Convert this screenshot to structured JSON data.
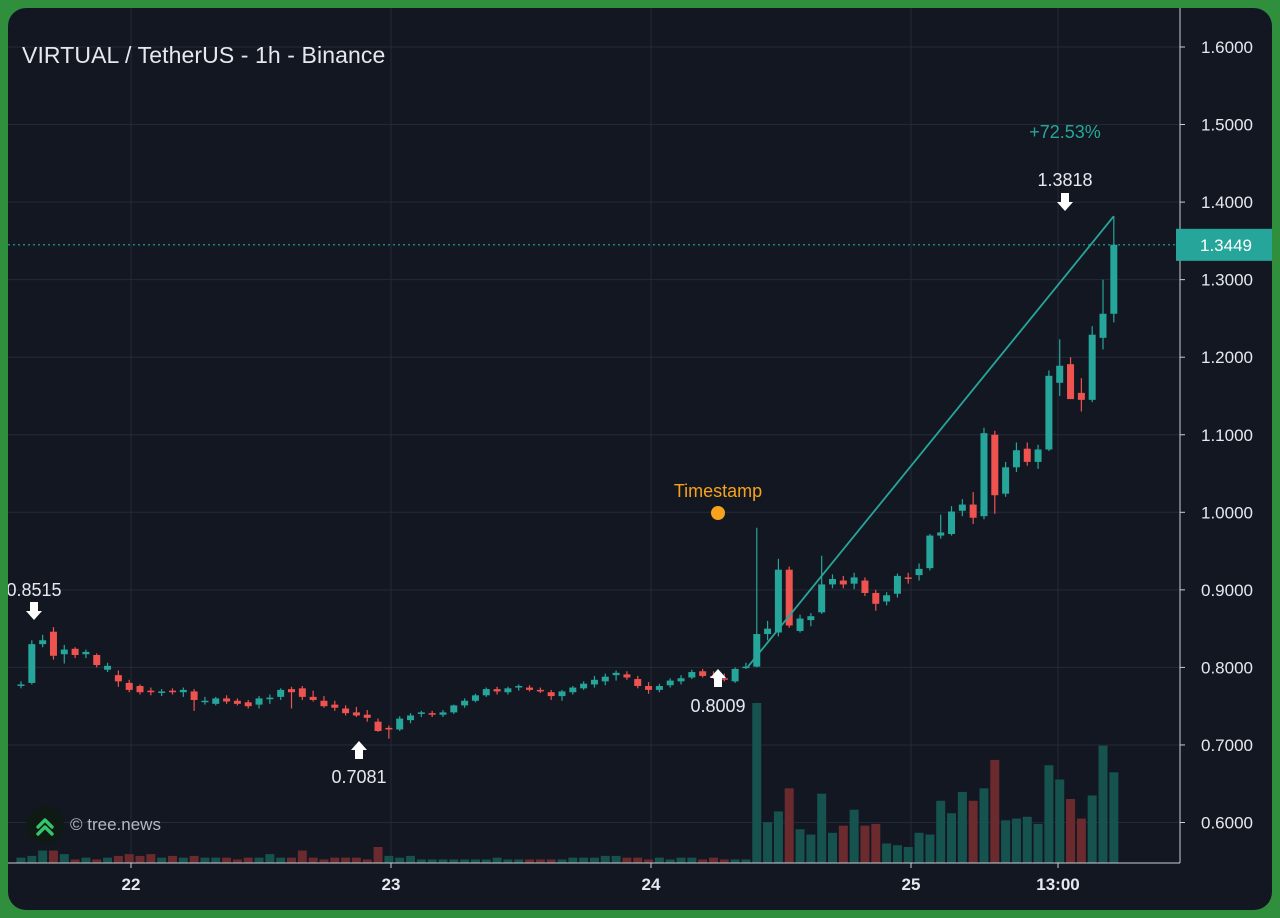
{
  "header": {
    "title": "VIRTUAL / TetherUS - 1h - Binance"
  },
  "watermark": {
    "text": "© tree.news",
    "icon": "tree-news-logo-icon"
  },
  "colors": {
    "up": "#26a69a",
    "down": "#ef5350",
    "annotation": "#f7a21b",
    "grid": "#242a35"
  },
  "chart_data": {
    "type": "candlestick",
    "title": "VIRTUAL / TetherUS - 1h - Binance",
    "x_ticks": [
      "22",
      "23",
      "24",
      "25",
      "13:00"
    ],
    "y_ticks": [
      "1.6000",
      "1.5000",
      "1.4000",
      "1.3000",
      "1.2000",
      "1.1000",
      "1.0000",
      "0.9000",
      "0.8000",
      "0.7000",
      "0.6000"
    ],
    "ylim": [
      0.545,
      1.655
    ],
    "grid": true,
    "last_price": "1.3449",
    "annotations": {
      "event_label": "Timestamp",
      "low_start_label": "0.8515",
      "swing_low_label": "0.7081",
      "event_low_label": "0.8009",
      "high_label": "1.3818",
      "change_label": "+72.53%"
    },
    "candles": [
      [
        0.778,
        0.782,
        0.773,
        0.778
      ],
      [
        0.78,
        0.835,
        0.778,
        0.83
      ],
      [
        0.83,
        0.842,
        0.826,
        0.835
      ],
      [
        0.846,
        0.852,
        0.81,
        0.815
      ],
      [
        0.817,
        0.829,
        0.805,
        0.823
      ],
      [
        0.824,
        0.826,
        0.812,
        0.816
      ],
      [
        0.817,
        0.823,
        0.812,
        0.82
      ],
      [
        0.816,
        0.818,
        0.8,
        0.803
      ],
      [
        0.797,
        0.806,
        0.794,
        0.802
      ],
      [
        0.79,
        0.796,
        0.775,
        0.782
      ],
      [
        0.78,
        0.784,
        0.768,
        0.771
      ],
      [
        0.776,
        0.778,
        0.765,
        0.768
      ],
      [
        0.77,
        0.774,
        0.764,
        0.768
      ],
      [
        0.768,
        0.772,
        0.763,
        0.769
      ],
      [
        0.77,
        0.773,
        0.765,
        0.768
      ],
      [
        0.768,
        0.774,
        0.762,
        0.771
      ],
      [
        0.769,
        0.772,
        0.744,
        0.758
      ],
      [
        0.756,
        0.762,
        0.752,
        0.757
      ],
      [
        0.753,
        0.762,
        0.751,
        0.76
      ],
      [
        0.76,
        0.764,
        0.753,
        0.756
      ],
      [
        0.757,
        0.76,
        0.751,
        0.753
      ],
      [
        0.755,
        0.758,
        0.747,
        0.75
      ],
      [
        0.752,
        0.763,
        0.747,
        0.76
      ],
      [
        0.759,
        0.765,
        0.753,
        0.761
      ],
      [
        0.762,
        0.773,
        0.758,
        0.771
      ],
      [
        0.772,
        0.775,
        0.747,
        0.768
      ],
      [
        0.773,
        0.776,
        0.758,
        0.762
      ],
      [
        0.762,
        0.77,
        0.756,
        0.758
      ],
      [
        0.757,
        0.763,
        0.748,
        0.75
      ],
      [
        0.752,
        0.757,
        0.744,
        0.748
      ],
      [
        0.747,
        0.751,
        0.738,
        0.741
      ],
      [
        0.742,
        0.749,
        0.736,
        0.738
      ],
      [
        0.739,
        0.745,
        0.73,
        0.735
      ],
      [
        0.73,
        0.734,
        0.717,
        0.718
      ],
      [
        0.722,
        0.725,
        0.708,
        0.72
      ],
      [
        0.72,
        0.737,
        0.718,
        0.734
      ],
      [
        0.732,
        0.741,
        0.728,
        0.738
      ],
      [
        0.74,
        0.744,
        0.736,
        0.742
      ],
      [
        0.741,
        0.744,
        0.736,
        0.739
      ],
      [
        0.739,
        0.745,
        0.736,
        0.742
      ],
      [
        0.742,
        0.752,
        0.74,
        0.751
      ],
      [
        0.751,
        0.76,
        0.748,
        0.757
      ],
      [
        0.757,
        0.766,
        0.755,
        0.764
      ],
      [
        0.764,
        0.774,
        0.762,
        0.772
      ],
      [
        0.772,
        0.775,
        0.765,
        0.769
      ],
      [
        0.768,
        0.775,
        0.765,
        0.773
      ],
      [
        0.775,
        0.778,
        0.77,
        0.776
      ],
      [
        0.774,
        0.777,
        0.769,
        0.771
      ],
      [
        0.771,
        0.774,
        0.767,
        0.769
      ],
      [
        0.768,
        0.771,
        0.758,
        0.763
      ],
      [
        0.763,
        0.771,
        0.757,
        0.769
      ],
      [
        0.768,
        0.776,
        0.765,
        0.774
      ],
      [
        0.773,
        0.782,
        0.771,
        0.779
      ],
      [
        0.778,
        0.789,
        0.774,
        0.784
      ],
      [
        0.782,
        0.792,
        0.777,
        0.788
      ],
      [
        0.79,
        0.796,
        0.783,
        0.793
      ],
      [
        0.791,
        0.795,
        0.784,
        0.787
      ],
      [
        0.785,
        0.789,
        0.773,
        0.776
      ],
      [
        0.776,
        0.781,
        0.766,
        0.771
      ],
      [
        0.771,
        0.779,
        0.768,
        0.776
      ],
      [
        0.777,
        0.786,
        0.774,
        0.783
      ],
      [
        0.782,
        0.79,
        0.778,
        0.786
      ],
      [
        0.787,
        0.797,
        0.785,
        0.794
      ],
      [
        0.795,
        0.798,
        0.787,
        0.789
      ],
      [
        0.789,
        0.795,
        0.785,
        0.787
      ],
      [
        0.786,
        0.792,
        0.782,
        0.785
      ],
      [
        0.782,
        0.8,
        0.78,
        0.798
      ],
      [
        0.8,
        0.806,
        0.798,
        0.801
      ],
      [
        0.801,
        0.98,
        0.8,
        0.843
      ],
      [
        0.843,
        0.86,
        0.835,
        0.85
      ],
      [
        0.845,
        0.94,
        0.84,
        0.926
      ],
      [
        0.926,
        0.93,
        0.851,
        0.854
      ],
      [
        0.847,
        0.868,
        0.845,
        0.863
      ],
      [
        0.861,
        0.87,
        0.853,
        0.866
      ],
      [
        0.871,
        0.944,
        0.869,
        0.907
      ],
      [
        0.907,
        0.92,
        0.902,
        0.914
      ],
      [
        0.912,
        0.918,
        0.902,
        0.907
      ],
      [
        0.908,
        0.922,
        0.901,
        0.916
      ],
      [
        0.912,
        0.916,
        0.892,
        0.896
      ],
      [
        0.896,
        0.9,
        0.873,
        0.882
      ],
      [
        0.885,
        0.897,
        0.88,
        0.893
      ],
      [
        0.895,
        0.921,
        0.89,
        0.918
      ],
      [
        0.916,
        0.922,
        0.908,
        0.915
      ],
      [
        0.919,
        0.934,
        0.912,
        0.927
      ],
      [
        0.928,
        0.972,
        0.925,
        0.97
      ],
      [
        0.97,
        0.997,
        0.966,
        0.974
      ],
      [
        0.972,
        1.008,
        0.97,
        1.001
      ],
      [
        1.002,
        1.017,
        0.995,
        1.01
      ],
      [
        1.01,
        1.026,
        0.985,
        0.993
      ],
      [
        0.995,
        1.109,
        0.991,
        1.102
      ],
      [
        1.1,
        1.105,
        0.998,
        1.022
      ],
      [
        1.024,
        1.065,
        1.02,
        1.058
      ],
      [
        1.058,
        1.09,
        1.052,
        1.08
      ],
      [
        1.082,
        1.09,
        1.06,
        1.065
      ],
      [
        1.065,
        1.087,
        1.056,
        1.081
      ],
      [
        1.081,
        1.183,
        1.079,
        1.176
      ],
      [
        1.167,
        1.223,
        1.15,
        1.189
      ],
      [
        1.191,
        1.2,
        1.146,
        1.146
      ],
      [
        1.154,
        1.173,
        1.13,
        1.145
      ],
      [
        1.145,
        1.24,
        1.142,
        1.229
      ],
      [
        1.225,
        1.3,
        1.21,
        1.256
      ],
      [
        1.256,
        1.382,
        1.245,
        1.345
      ]
    ],
    "volume": [
      3,
      4,
      7,
      7,
      5,
      2,
      3,
      2,
      3,
      4,
      5,
      4,
      5,
      3,
      4,
      3,
      4,
      3,
      3,
      3,
      2,
      3,
      3,
      5,
      3,
      3,
      7,
      3,
      2,
      3,
      3,
      3,
      2,
      9,
      4,
      3,
      4,
      2,
      2,
      2,
      2,
      2,
      2,
      2,
      3,
      2,
      2,
      2,
      2,
      2,
      2,
      3,
      3,
      3,
      4,
      4,
      3,
      3,
      2,
      3,
      2,
      3,
      3,
      2,
      3,
      2,
      2,
      2,
      90,
      23,
      29,
      42,
      19,
      16,
      39,
      17,
      21,
      30,
      21,
      22,
      11,
      10,
      9,
      17,
      16,
      35,
      28,
      40,
      35,
      42,
      58,
      24,
      25,
      26,
      22,
      55,
      47,
      36,
      25,
      38,
      66,
      51
    ],
    "volume_up_flags": [
      1,
      1,
      1,
      0,
      1,
      0,
      1,
      0,
      1,
      0,
      0,
      0,
      0,
      1,
      0,
      1,
      0,
      1,
      1,
      0,
      0,
      0,
      1,
      1,
      1,
      0,
      0,
      0,
      0,
      0,
      0,
      0,
      0,
      0,
      1,
      1,
      1,
      1,
      1,
      1,
      1,
      1,
      1,
      1,
      1,
      1,
      1,
      0,
      0,
      0,
      1,
      1,
      1,
      1,
      1,
      1,
      0,
      0,
      0,
      1,
      1,
      1,
      1,
      0,
      0,
      0,
      1,
      1,
      1,
      1,
      1,
      0,
      1,
      1,
      1,
      1,
      0,
      1,
      0,
      0,
      1,
      1,
      1,
      1,
      1,
      1,
      1,
      1,
      0,
      1,
      0,
      1,
      1,
      1,
      1,
      1,
      1,
      0,
      0,
      1,
      1,
      1
    ]
  }
}
